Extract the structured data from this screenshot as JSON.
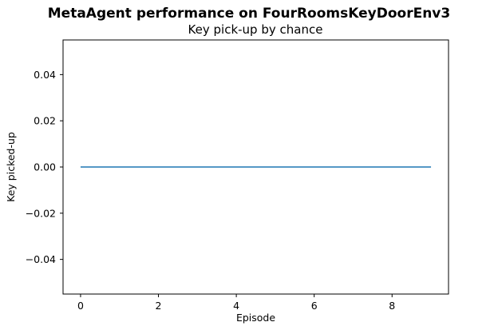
{
  "figure": {
    "suptitle": "MetaAgent performance on FourRoomsKeyDoorEnv3"
  },
  "chart_data": {
    "type": "line",
    "title": "Key pick-up by chance",
    "xlabel": "Episode",
    "ylabel": "Key picked-up",
    "x": [
      0,
      1,
      2,
      3,
      4,
      5,
      6,
      7,
      8,
      9
    ],
    "series": [
      {
        "values": [
          0,
          0,
          0,
          0,
          0,
          0,
          0,
          0,
          0,
          0
        ],
        "color": "#1f77b4"
      }
    ],
    "xlim": [
      -0.45,
      9.45
    ],
    "ylim": [
      -0.055,
      0.055
    ],
    "xticks": [
      0,
      2,
      4,
      6,
      8
    ],
    "xtick_labels": [
      "0",
      "2",
      "4",
      "6",
      "8"
    ],
    "yticks": [
      -0.04,
      -0.02,
      0.0,
      0.02,
      0.04
    ],
    "ytick_labels": [
      "−0.04",
      "−0.02",
      "0.00",
      "0.02",
      "0.04"
    ],
    "grid": false,
    "legend": false
  }
}
